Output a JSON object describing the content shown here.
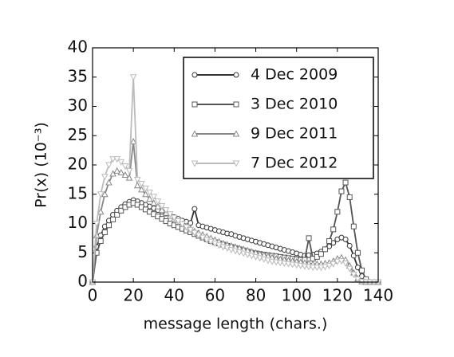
{
  "chart_data": {
    "type": "line",
    "xlabel": "message length (chars.)",
    "ylabel": "Pr(x) (10⁻³)",
    "x": [
      0,
      2,
      4,
      6,
      8,
      10,
      12,
      14,
      16,
      18,
      20,
      22,
      24,
      26,
      28,
      30,
      32,
      34,
      36,
      38,
      40,
      42,
      44,
      46,
      48,
      50,
      52,
      54,
      56,
      58,
      60,
      62,
      64,
      66,
      68,
      70,
      72,
      74,
      76,
      78,
      80,
      82,
      84,
      86,
      88,
      90,
      92,
      94,
      96,
      98,
      100,
      102,
      104,
      106,
      108,
      110,
      112,
      114,
      116,
      118,
      120,
      122,
      124,
      126,
      128,
      130,
      132,
      134,
      136,
      138,
      140
    ],
    "series": [
      {
        "name": "4 Dec 2009",
        "color": "#333333",
        "marker": "circle",
        "values": [
          0,
          6,
          8,
          9.5,
          10.5,
          11.5,
          12.2,
          12.8,
          13.3,
          13.7,
          14,
          13.8,
          13.5,
          13.2,
          12.9,
          12.6,
          12.3,
          12,
          11.7,
          11.4,
          11.1,
          10.8,
          10.5,
          10.3,
          10.1,
          12.5,
          9.7,
          9.5,
          9.3,
          9.1,
          8.9,
          8.7,
          8.5,
          8.3,
          8.2,
          7.9,
          7.7,
          7.5,
          7.3,
          7.1,
          6.9,
          6.7,
          6.5,
          6.3,
          6.1,
          5.9,
          5.7,
          5.5,
          5.3,
          5.1,
          4.9,
          4.7,
          4.5,
          4.6,
          4.7,
          4.9,
          5.2,
          5.6,
          6.1,
          6.7,
          7.3,
          7.6,
          7.3,
          6.2,
          4.5,
          2.5,
          1,
          0.3,
          0,
          0,
          0
        ]
      },
      {
        "name": "3 Dec 2010",
        "color": "#555555",
        "marker": "square",
        "values": [
          0,
          5,
          7,
          8.5,
          9.7,
          10.7,
          11.5,
          12.2,
          12.8,
          13.2,
          13.5,
          13.2,
          12.8,
          12.4,
          12,
          11.6,
          11.2,
          10.8,
          10.4,
          10,
          9.7,
          9.4,
          9.1,
          8.8,
          8.5,
          8.2,
          7.9,
          7.6,
          7.3,
          7,
          6.8,
          6.6,
          6.4,
          6.2,
          6,
          5.8,
          5.6,
          5.4,
          5.2,
          5,
          4.9,
          4.8,
          4.7,
          4.6,
          4.5,
          4.4,
          4.3,
          4.2,
          4.1,
          4,
          3.9,
          3.8,
          3.8,
          7.5,
          4,
          4.3,
          4.8,
          5.6,
          7,
          9,
          12,
          15.5,
          17,
          14.5,
          9.5,
          5,
          2,
          0.5,
          0,
          0,
          0
        ]
      },
      {
        "name": "9 Dec 2011",
        "color": "#888888",
        "marker": "triangle-up",
        "values": [
          0,
          8,
          12,
          15,
          17,
          18.5,
          19,
          18.7,
          18.3,
          17.8,
          24,
          16.5,
          15.8,
          15,
          14.2,
          13.5,
          12.9,
          12.3,
          11.8,
          11.3,
          10.8,
          10.3,
          9.9,
          9.5,
          9.1,
          8.7,
          8.4,
          8.1,
          7.8,
          7.5,
          7.2,
          6.9,
          6.6,
          6.4,
          6.2,
          6,
          5.8,
          5.6,
          5.4,
          5.2,
          5,
          4.8,
          4.6,
          4.4,
          4.2,
          4,
          3.9,
          3.8,
          3.7,
          3.6,
          3.5,
          3.4,
          3.3,
          3.2,
          3.1,
          3.1,
          3.1,
          3.2,
          3.3,
          3.6,
          4,
          4.2,
          3.8,
          2.8,
          1.6,
          0.6,
          0.1,
          0,
          0,
          0,
          0
        ]
      },
      {
        "name": "7 Dec 2012",
        "color": "#bbbbbb",
        "marker": "triangle-down",
        "values": [
          0,
          10,
          15,
          18,
          20,
          21,
          21,
          20.5,
          19.8,
          19,
          35,
          17.5,
          16.8,
          16,
          15.3,
          14.6,
          13.8,
          13,
          12.3,
          11.6,
          11,
          10.4,
          9.9,
          9.4,
          8.9,
          8.4,
          8,
          7.6,
          7.2,
          6.9,
          6.6,
          6.3,
          6,
          5.8,
          5.5,
          5.3,
          5.1,
          4.9,
          4.7,
          4.5,
          4.3,
          4.1,
          3.9,
          3.7,
          3.5,
          3.4,
          3.3,
          3.2,
          3.1,
          3,
          2.9,
          2.8,
          2.7,
          2.6,
          2.5,
          2.5,
          2.5,
          2.6,
          2.8,
          3.1,
          3.5,
          3.6,
          3.2,
          2.3,
          1.3,
          0.5,
          0.1,
          0,
          0,
          0,
          0
        ]
      }
    ],
    "xlim": [
      0,
      140
    ],
    "xticks": [
      0,
      20,
      40,
      60,
      80,
      100,
      120,
      140
    ],
    "ylim": [
      0,
      40
    ],
    "yticks": [
      0,
      5,
      10,
      15,
      20,
      25,
      30,
      35,
      40
    ],
    "legend": "upper right"
  }
}
